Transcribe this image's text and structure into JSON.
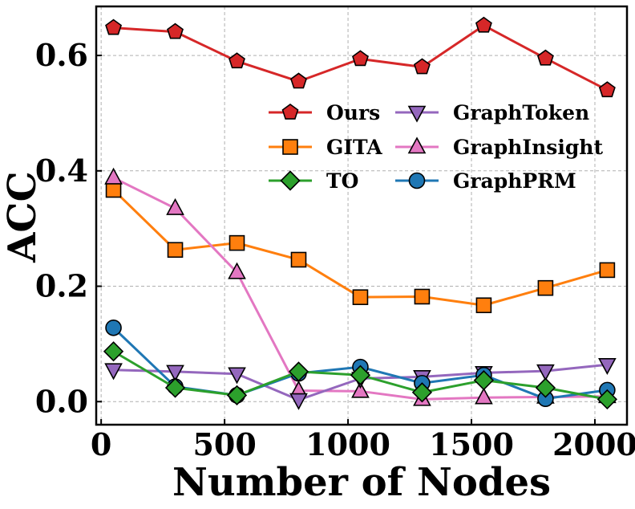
{
  "chart_data": {
    "type": "line",
    "xlabel": "Number of Nodes",
    "ylabel": "ACC",
    "xlim": [
      -20,
      2130
    ],
    "ylim": [
      -0.04,
      0.685
    ],
    "xticks": [
      0,
      500,
      1000,
      1500,
      2000
    ],
    "xtick_labels": [
      "0",
      "500",
      "1000",
      "1500",
      "2000"
    ],
    "yticks": [
      0.0,
      0.2,
      0.4,
      0.6
    ],
    "ytick_labels": [
      "0.0",
      "0.2",
      "0.4",
      "0.6"
    ],
    "grid": true,
    "legend_position": "upper-right",
    "x": [
      50,
      300,
      550,
      800,
      1050,
      1300,
      1550,
      1800,
      2050
    ],
    "series": [
      {
        "name": "Ours",
        "color": "#d62728",
        "marker": "pentagon",
        "values": [
          0.648,
          0.641,
          0.59,
          0.555,
          0.594,
          0.58,
          0.652,
          0.595,
          0.54
        ]
      },
      {
        "name": "GITA",
        "color": "#ff7f0e",
        "marker": "square",
        "values": [
          0.367,
          0.263,
          0.275,
          0.246,
          0.181,
          0.182,
          0.167,
          0.197,
          0.228
        ]
      },
      {
        "name": "TO",
        "color": "#2ca02c",
        "marker": "diamond",
        "values": [
          0.087,
          0.024,
          0.011,
          0.052,
          0.046,
          0.016,
          0.037,
          0.024,
          0.004
        ]
      },
      {
        "name": "GraphToken",
        "color": "#9467bd",
        "marker": "triangle-down",
        "values": [
          0.055,
          0.052,
          0.048,
          0.003,
          0.04,
          0.043,
          0.05,
          0.053,
          0.064
        ]
      },
      {
        "name": "GraphInsight",
        "color": "#e377c2",
        "marker": "triangle-up",
        "values": [
          0.388,
          0.335,
          0.224,
          0.019,
          0.018,
          0.004,
          0.007,
          0.008,
          0.009
        ]
      },
      {
        "name": "GraphPRM",
        "color": "#1f77b4",
        "marker": "circle",
        "values": [
          0.128,
          0.026,
          0.011,
          0.049,
          0.06,
          0.032,
          0.046,
          0.005,
          0.02
        ]
      }
    ]
  }
}
